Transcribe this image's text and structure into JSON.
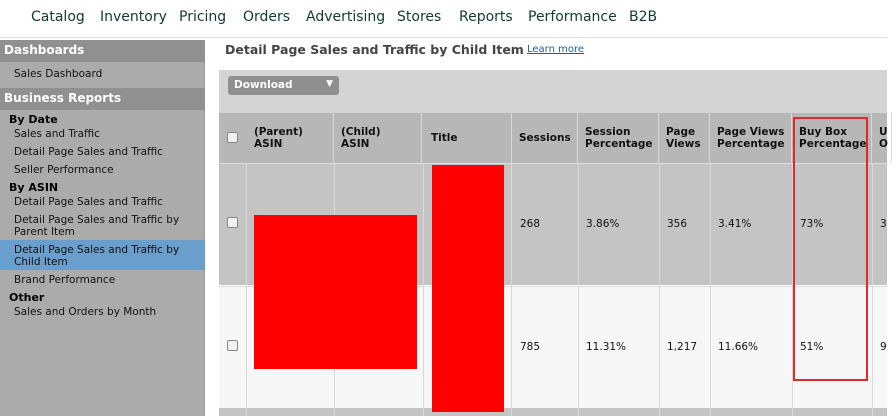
{
  "nav": {
    "items": [
      "Catalog",
      "Inventory",
      "Pricing",
      "Orders",
      "Advertising",
      "Stores",
      "Reports",
      "Performance",
      "B2B"
    ]
  },
  "sidebar": {
    "dashboards_header": "Dashboards",
    "sales_dashboard": "Sales Dashboard",
    "business_reports_header": "Business Reports",
    "by_date": "By Date",
    "sales_and_traffic": "Sales and Traffic",
    "detail_page_sales_traffic": "Detail Page Sales and Traffic",
    "seller_performance": "Seller Performance",
    "by_asin": "By ASIN",
    "asin_detail_page": "Detail Page Sales and Traffic",
    "asin_by_parent": "Detail Page Sales and Traffic by Parent Item",
    "asin_by_child": "Detail Page Sales and Traffic by Child Item",
    "brand_performance": "Brand Performance",
    "other": "Other",
    "sales_orders_month": "Sales and Orders by Month"
  },
  "page": {
    "title": "Detail Page Sales and Traffic by Child Item",
    "learn_more": "Learn more",
    "download": "Download"
  },
  "table": {
    "headers": {
      "parent_asin": "(Parent) ASIN",
      "child_asin": "(Child) ASIN",
      "title": "Title",
      "sessions": "Sessions",
      "session_pct": "Session Percentage",
      "page_views": "Page Views",
      "page_views_pct": "Page Views Percentage",
      "buy_box_pct": "Buy Box Percentage",
      "units_partial": "U O"
    },
    "rows": [
      {
        "sessions": "268",
        "session_pct": "3.86%",
        "page_views": "356",
        "page_views_pct": "3.41%",
        "buy_box_pct": "73%",
        "units_partial": "3"
      },
      {
        "sessions": "785",
        "session_pct": "11.31%",
        "page_views": "1,217",
        "page_views_pct": "11.66%",
        "buy_box_pct": "51%",
        "units_partial": "9"
      }
    ]
  },
  "colors": {
    "redaction": "#ff0000",
    "highlight": "#e0282d",
    "active_sidebar": "#6a9fcd"
  }
}
